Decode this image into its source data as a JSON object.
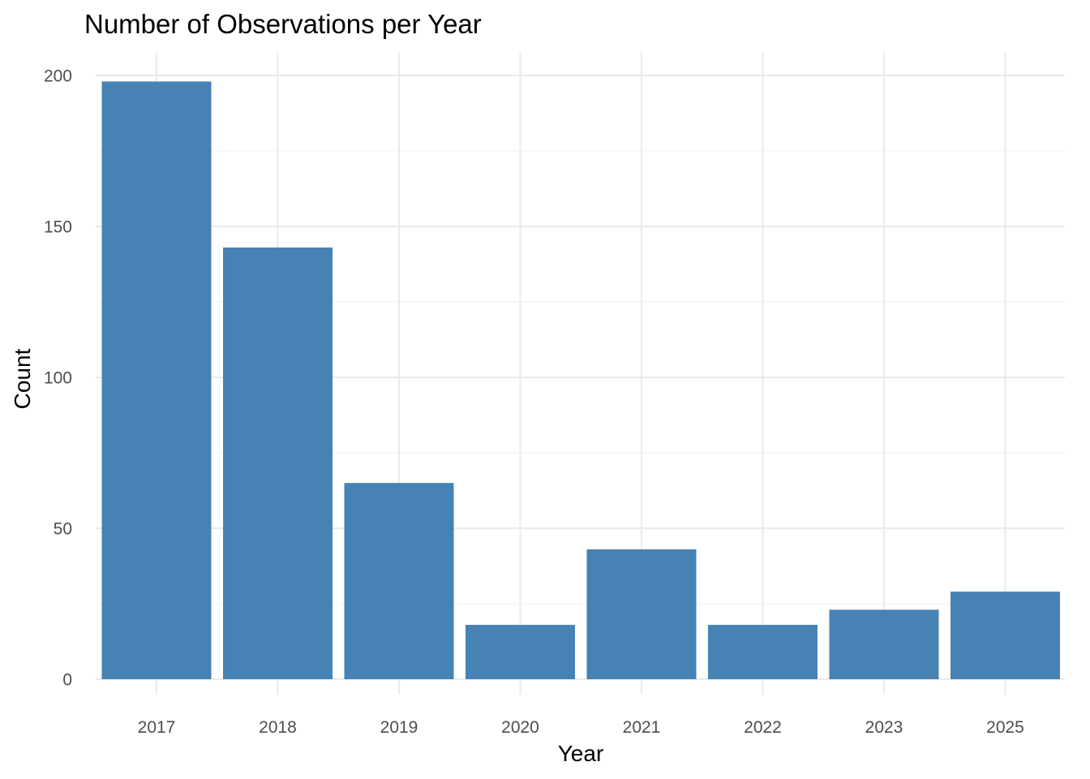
{
  "chart_data": {
    "type": "bar",
    "title": "Number of Observations per Year",
    "xlabel": "Year",
    "ylabel": "Count",
    "categories": [
      "2017",
      "2018",
      "2019",
      "2020",
      "2021",
      "2022",
      "2023",
      "2025"
    ],
    "values": [
      198,
      143,
      65,
      18,
      43,
      18,
      23,
      29
    ],
    "ylim": [
      0,
      208
    ],
    "yticks": [
      0,
      50,
      100,
      150,
      200
    ],
    "grid": true,
    "legend": "none",
    "bar_color": "#4682b4"
  }
}
